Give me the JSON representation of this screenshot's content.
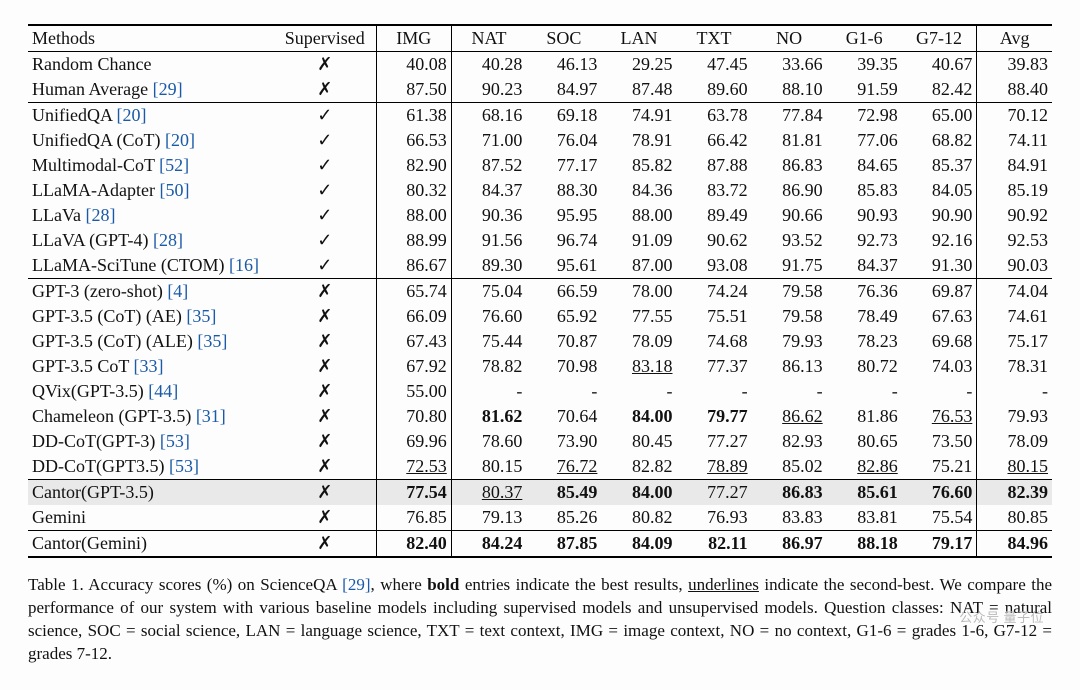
{
  "table": {
    "headers": [
      "Methods",
      "Supervised",
      "IMG",
      "NAT",
      "SOC",
      "LAN",
      "TXT",
      "NO",
      "G1-6",
      "G7-12",
      "Avg"
    ],
    "col_separator_after": [
      1,
      2,
      9,
      10
    ],
    "section_breaks_before": [
      2,
      9,
      17,
      19
    ],
    "highlight_rows": [
      17,
      20
    ],
    "methods": [
      {
        "name": "Random Chance",
        "cite": null
      },
      {
        "name": "Human Average",
        "cite": "[29]"
      },
      {
        "name": "UnifiedQA",
        "cite": "[20]"
      },
      {
        "name": "UnifiedQA (CoT)",
        "cite": "[20]"
      },
      {
        "name": "Multimodal-CoT",
        "cite": "[52]"
      },
      {
        "name": "LLaMA-Adapter",
        "cite": "[50]"
      },
      {
        "name": "LLaVa",
        "cite": "[28]"
      },
      {
        "name": "LLaVA (GPT-4)",
        "cite": "[28]"
      },
      {
        "name": "LLaMA-SciTune (CTOM)",
        "cite": "[16]"
      },
      {
        "name": "GPT-3 (zero-shot)",
        "cite": "[4]"
      },
      {
        "name": "GPT-3.5 (CoT) (AE)",
        "cite": "[35]"
      },
      {
        "name": "GPT-3.5 (CoT) (ALE)",
        "cite": "[35]"
      },
      {
        "name": "GPT-3.5 CoT",
        "cite": "[33]"
      },
      {
        "name": "QVix(GPT-3.5)",
        "cite": "[44]"
      },
      {
        "name": "Chameleon (GPT-3.5)",
        "cite": "[31]"
      },
      {
        "name": "DD-CoT(GPT-3)",
        "cite": "[53]"
      },
      {
        "name": "DD-CoT(GPT3.5)",
        "cite": "[53]"
      },
      {
        "name": "Cantor(GPT-3.5)",
        "cite": null
      },
      {
        "name": "Gemini",
        "cite": null
      },
      {
        "name": "Cantor(Gemini)",
        "cite": null
      }
    ],
    "supervised": [
      "✗",
      "✗",
      "✓",
      "✓",
      "✓",
      "✓",
      "✓",
      "✓",
      "✓",
      "✗",
      "✗",
      "✗",
      "✗",
      "✗",
      "✗",
      "✗",
      "✗",
      "✗",
      "✗",
      "✗"
    ],
    "cells": [
      [
        {
          "v": "40.08"
        },
        {
          "v": "40.28"
        },
        {
          "v": "46.13"
        },
        {
          "v": "29.25"
        },
        {
          "v": "47.45"
        },
        {
          "v": "33.66"
        },
        {
          "v": "39.35"
        },
        {
          "v": "40.67"
        },
        {
          "v": "39.83"
        }
      ],
      [
        {
          "v": "87.50"
        },
        {
          "v": "90.23"
        },
        {
          "v": "84.97"
        },
        {
          "v": "87.48"
        },
        {
          "v": "89.60"
        },
        {
          "v": "88.10"
        },
        {
          "v": "91.59"
        },
        {
          "v": "82.42"
        },
        {
          "v": "88.40"
        }
      ],
      [
        {
          "v": "61.38"
        },
        {
          "v": "68.16"
        },
        {
          "v": "69.18"
        },
        {
          "v": "74.91"
        },
        {
          "v": "63.78"
        },
        {
          "v": "77.84"
        },
        {
          "v": "72.98"
        },
        {
          "v": "65.00"
        },
        {
          "v": "70.12"
        }
      ],
      [
        {
          "v": "66.53"
        },
        {
          "v": "71.00"
        },
        {
          "v": "76.04"
        },
        {
          "v": "78.91"
        },
        {
          "v": "66.42"
        },
        {
          "v": "81.81"
        },
        {
          "v": "77.06"
        },
        {
          "v": "68.82"
        },
        {
          "v": "74.11"
        }
      ],
      [
        {
          "v": "82.90"
        },
        {
          "v": "87.52"
        },
        {
          "v": "77.17"
        },
        {
          "v": "85.82"
        },
        {
          "v": "87.88"
        },
        {
          "v": "86.83"
        },
        {
          "v": "84.65"
        },
        {
          "v": "85.37"
        },
        {
          "v": "84.91"
        }
      ],
      [
        {
          "v": "80.32"
        },
        {
          "v": "84.37"
        },
        {
          "v": "88.30"
        },
        {
          "v": "84.36"
        },
        {
          "v": "83.72"
        },
        {
          "v": "86.90"
        },
        {
          "v": "85.83"
        },
        {
          "v": "84.05"
        },
        {
          "v": "85.19"
        }
      ],
      [
        {
          "v": "88.00"
        },
        {
          "v": "90.36"
        },
        {
          "v": "95.95"
        },
        {
          "v": "88.00"
        },
        {
          "v": "89.49"
        },
        {
          "v": "90.66"
        },
        {
          "v": "90.93"
        },
        {
          "v": "90.90"
        },
        {
          "v": "90.92"
        }
      ],
      [
        {
          "v": "88.99"
        },
        {
          "v": "91.56"
        },
        {
          "v": "96.74"
        },
        {
          "v": "91.09"
        },
        {
          "v": "90.62"
        },
        {
          "v": "93.52"
        },
        {
          "v": "92.73"
        },
        {
          "v": "92.16"
        },
        {
          "v": "92.53"
        }
      ],
      [
        {
          "v": "86.67"
        },
        {
          "v": "89.30"
        },
        {
          "v": "95.61"
        },
        {
          "v": "87.00"
        },
        {
          "v": "93.08"
        },
        {
          "v": "91.75"
        },
        {
          "v": "84.37"
        },
        {
          "v": "91.30"
        },
        {
          "v": "90.03"
        }
      ],
      [
        {
          "v": "65.74"
        },
        {
          "v": "75.04"
        },
        {
          "v": "66.59"
        },
        {
          "v": "78.00"
        },
        {
          "v": "74.24"
        },
        {
          "v": "79.58"
        },
        {
          "v": "76.36"
        },
        {
          "v": "69.87"
        },
        {
          "v": "74.04"
        }
      ],
      [
        {
          "v": "66.09"
        },
        {
          "v": "76.60"
        },
        {
          "v": "65.92"
        },
        {
          "v": "77.55"
        },
        {
          "v": "75.51"
        },
        {
          "v": "79.58"
        },
        {
          "v": "78.49"
        },
        {
          "v": "67.63"
        },
        {
          "v": "74.61"
        }
      ],
      [
        {
          "v": "67.43"
        },
        {
          "v": "75.44"
        },
        {
          "v": "70.87"
        },
        {
          "v": "78.09"
        },
        {
          "v": "74.68"
        },
        {
          "v": "79.93"
        },
        {
          "v": "78.23"
        },
        {
          "v": "69.68"
        },
        {
          "v": "75.17"
        }
      ],
      [
        {
          "v": "67.92"
        },
        {
          "v": "78.82"
        },
        {
          "v": "70.98"
        },
        {
          "v": "83.18",
          "u": true
        },
        {
          "v": "77.37"
        },
        {
          "v": "86.13"
        },
        {
          "v": "80.72"
        },
        {
          "v": "74.03"
        },
        {
          "v": "78.31"
        }
      ],
      [
        {
          "v": "55.00"
        },
        {
          "v": "-"
        },
        {
          "v": "-"
        },
        {
          "v": "-"
        },
        {
          "v": "-"
        },
        {
          "v": "-"
        },
        {
          "v": "-"
        },
        {
          "v": "-"
        },
        {
          "v": "-"
        }
      ],
      [
        {
          "v": "70.80"
        },
        {
          "v": "81.62",
          "b": true
        },
        {
          "v": "70.64"
        },
        {
          "v": "84.00",
          "b": true
        },
        {
          "v": "79.77",
          "b": true
        },
        {
          "v": "86.62",
          "u": true
        },
        {
          "v": "81.86"
        },
        {
          "v": "76.53",
          "u": true
        },
        {
          "v": "79.93"
        }
      ],
      [
        {
          "v": "69.96"
        },
        {
          "v": "78.60"
        },
        {
          "v": "73.90"
        },
        {
          "v": "80.45"
        },
        {
          "v": "77.27"
        },
        {
          "v": "82.93"
        },
        {
          "v": "80.65"
        },
        {
          "v": "73.50"
        },
        {
          "v": "78.09"
        }
      ],
      [
        {
          "v": "72.53",
          "u": true
        },
        {
          "v": "80.15"
        },
        {
          "v": "76.72",
          "u": true
        },
        {
          "v": "82.82"
        },
        {
          "v": "78.89",
          "u": true
        },
        {
          "v": "85.02"
        },
        {
          "v": "82.86",
          "u": true
        },
        {
          "v": "75.21"
        },
        {
          "v": "80.15",
          "u": true
        }
      ],
      [
        {
          "v": "77.54",
          "b": true
        },
        {
          "v": "80.37",
          "u": true
        },
        {
          "v": "85.49",
          "b": true
        },
        {
          "v": "84.00",
          "b": true
        },
        {
          "v": "77.27"
        },
        {
          "v": "86.83",
          "b": true
        },
        {
          "v": "85.61",
          "b": true
        },
        {
          "v": "76.60",
          "b": true
        },
        {
          "v": "82.39",
          "b": true
        }
      ],
      [
        {
          "v": "76.85"
        },
        {
          "v": "79.13"
        },
        {
          "v": "85.26"
        },
        {
          "v": "80.82"
        },
        {
          "v": "76.93"
        },
        {
          "v": "83.83"
        },
        {
          "v": "83.81"
        },
        {
          "v": "75.54"
        },
        {
          "v": "80.85"
        }
      ],
      [
        {
          "v": "82.40",
          "b": true
        },
        {
          "v": "84.24",
          "b": true
        },
        {
          "v": "87.85",
          "b": true
        },
        {
          "v": "84.09",
          "b": true
        },
        {
          "v": "82.11",
          "b": true
        },
        {
          "v": "86.97",
          "b": true
        },
        {
          "v": "88.18",
          "b": true
        },
        {
          "v": "79.17",
          "b": true
        },
        {
          "v": "84.96",
          "b": true
        }
      ]
    ]
  },
  "caption": {
    "label": "Table 1.",
    "text_before_cite": " Accuracy scores (%) on ScienceQA ",
    "cite": "[29]",
    "text_after_cite": ", where ",
    "bold_word": "bold",
    "mid1": " entries indicate the best results, ",
    "ul_word": "underlines",
    "mid2": " indicate the second-best. We compare the performance of our system with various baseline models including supervised models and unsupervised models. Question classes: NAT = natural science, SOC = social science, LAN = language science, TXT = text context, IMG = image context, NO = no context, G1-6 = grades 1-6, G7-12 = grades 7-12."
  },
  "watermark": "公众号 量子位"
}
